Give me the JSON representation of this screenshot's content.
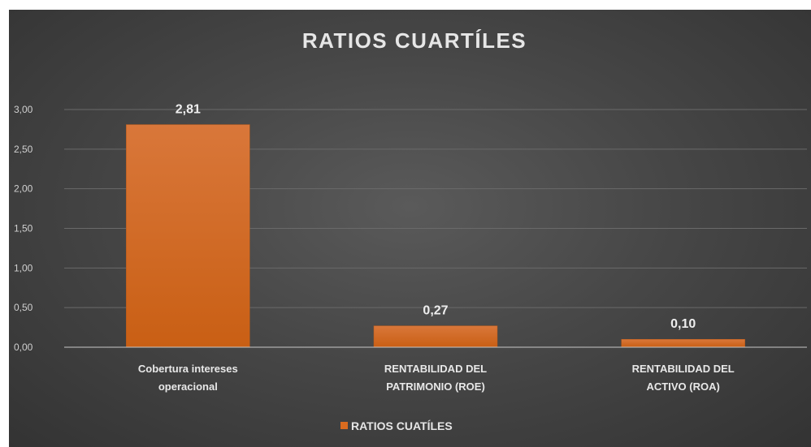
{
  "chart_data": {
    "type": "bar",
    "title": "RATIOS CUARTÍLES",
    "categories": [
      [
        "Cobertura intereses",
        "operacional"
      ],
      [
        "RENTABILIDAD DEL",
        "PATRIMONIO (ROE)"
      ],
      [
        "RENTABILIDAD DEL",
        "ACTIVO (ROA)"
      ]
    ],
    "series": [
      {
        "name": "RATIOS CUATÍLES",
        "values": [
          2.81,
          0.27,
          0.1
        ],
        "color": "#d96b1f"
      }
    ],
    "data_labels": [
      "2,81",
      "0,27",
      "0,10"
    ],
    "y_ticks": [
      0,
      0.5,
      1,
      1.5,
      2,
      2.5,
      3
    ],
    "y_tick_labels": [
      "0,00",
      "0,50",
      "1,00",
      "1,50",
      "2,00",
      "2,50",
      "3,00"
    ],
    "ylim": [
      0,
      3
    ],
    "xlabel": "",
    "ylabel": "",
    "grid": true,
    "legend_position": "bottom",
    "background": "#474747"
  }
}
